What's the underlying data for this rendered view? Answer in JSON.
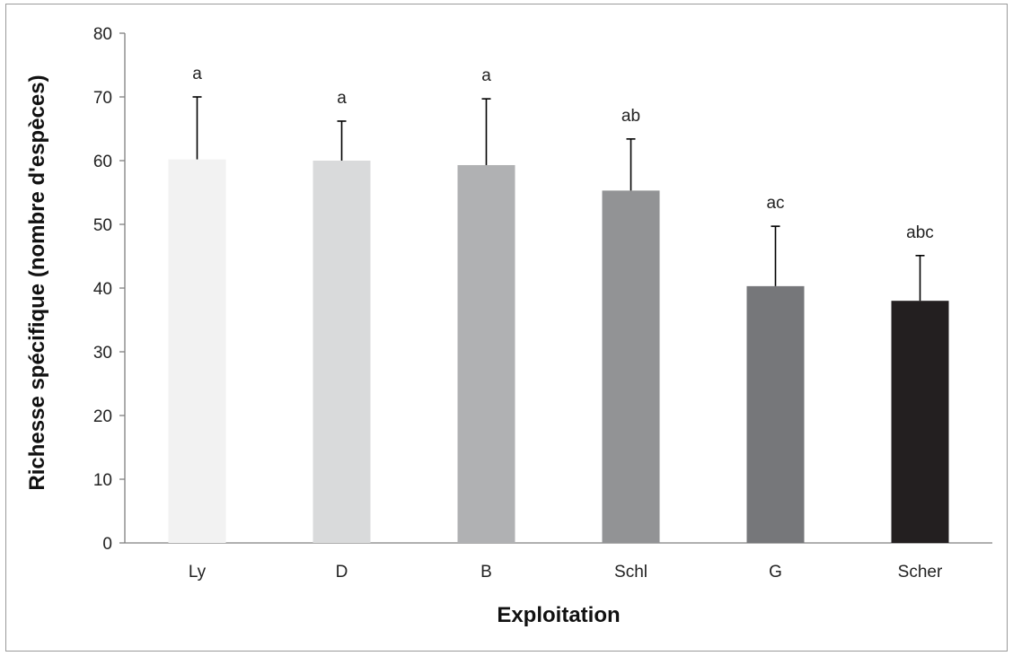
{
  "chart_data": {
    "type": "bar",
    "title": "",
    "xlabel": "Exploitation",
    "ylabel": "Richesse spécifique (nombre d'espèces)",
    "ylim": [
      0,
      80
    ],
    "yticks": [
      0,
      10,
      20,
      30,
      40,
      50,
      60,
      70,
      80
    ],
    "grid": false,
    "legend": "none",
    "categories": [
      "Ly",
      "D",
      "B",
      "Schl",
      "G",
      "Scher"
    ],
    "values": [
      60.2,
      60.0,
      59.3,
      55.3,
      40.3,
      38.0
    ],
    "error_bars_upper": [
      9.8,
      6.2,
      10.4,
      8.1,
      9.4,
      7.1
    ],
    "significance_letters": [
      "a",
      "a",
      "a",
      "ab",
      "ac",
      "abc"
    ],
    "colors": [
      "#f2f2f2",
      "#d9dadb",
      "#b0b1b3",
      "#929395",
      "#76777a",
      "#231f20"
    ],
    "axis_color": "#7f7f7f",
    "error_bar_color": "#000000"
  }
}
